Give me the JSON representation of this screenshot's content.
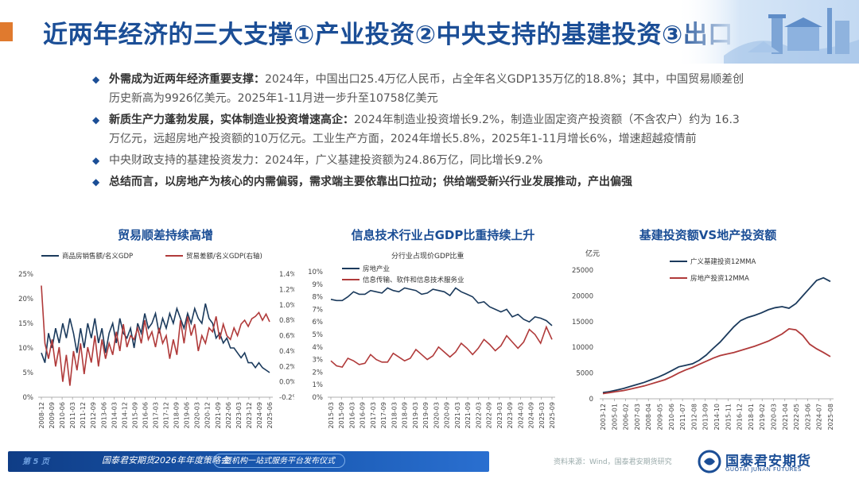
{
  "title": "近两年经济的三大支撑①产业投资②中央支持的基建投资③出口",
  "bullets": [
    {
      "mark": "◆",
      "bold": "外需成为近两年经济重要支撑：",
      "text": "2024年，中国出口25.4万亿人民币，占全年名义GDP135万亿的18.8%；其中，中国贸易顺差创历史新高为9926亿美元。2025年1-11月进一步升至10758亿美元"
    },
    {
      "mark": "◆",
      "bold": "新质生产力蓬勃发展，实体制造业投资增速高企：",
      "text": "2024年制造业投资增长9.2%，制造业固定资产投资额（不含农户）约为 16.3万亿元，远超房地产投资额的10万亿元。工业生产方面，2024年增长5.8%，2025年1-11月增长6%，增速超越疫情前"
    },
    {
      "mark": "◆",
      "bold": "",
      "text": "中央财政支持的基建投资发力：2024年，广义基建投资额为24.86万亿，同比增长9.2%"
    },
    {
      "mark": "◆",
      "bold": "总结而言，以房地产为核心的内需偏弱，需求端主要依靠出口拉动；供给端受新兴行业发展推动，产出偏强",
      "text": ""
    }
  ],
  "colors": {
    "navy": "#1b3a5c",
    "red": "#b03a3a",
    "brand": "#1b4e96",
    "accent": "#e07a2e"
  },
  "chart_data": [
    {
      "type": "line",
      "title": "贸易顺差持续高增",
      "legend": [
        "商品房销售额/名义GDP",
        "贸易差额/名义GDP(右轴)"
      ],
      "x_ticks": [
        "2008-12",
        "2009-09",
        "2010-06",
        "2011-03",
        "2011-12",
        "2012-09",
        "2013-06",
        "2014-03",
        "2014-12",
        "2015-09",
        "2016-06",
        "2017-03",
        "2017-12",
        "2018-09",
        "2019-06",
        "2020-03",
        "2020-12",
        "2021-09",
        "2022-06",
        "2023-03",
        "2023-12",
        "2024-09",
        "2025-06"
      ],
      "y_ticks_left": [
        "0%",
        "5%",
        "10%",
        "15%",
        "20%",
        "25%"
      ],
      "y_ticks_right": [
        "-0.2%",
        "0.0%",
        "0.2%",
        "0.4%",
        "0.6%",
        "0.8%",
        "1.0%",
        "1.2%",
        "1.4%"
      ],
      "ylim_left": [
        0,
        25
      ],
      "ylim_right": [
        -0.2,
        1.4
      ],
      "series": [
        {
          "name": "商品房销售额/名义GDP",
          "axis": "left",
          "values": [
            9,
            7,
            13,
            10,
            14,
            11,
            15,
            12,
            16,
            13,
            9,
            14,
            10,
            15,
            12,
            16,
            11,
            14,
            9,
            13,
            15,
            11,
            16,
            13,
            12,
            14,
            10,
            15,
            13,
            17,
            14,
            15,
            17,
            13,
            16,
            14,
            17,
            15,
            18,
            16,
            14,
            17,
            15,
            18,
            16,
            15,
            19,
            16,
            15,
            12,
            13,
            11,
            12,
            10,
            10,
            9,
            8,
            9,
            7,
            7,
            6,
            7,
            6,
            5.5,
            5
          ]
        },
        {
          "name": "贸易差额/名义GDP(右轴)",
          "axis": "right",
          "values": [
            1.25,
            0.5,
            0.3,
            0.55,
            0.2,
            0.45,
            0.0,
            0.35,
            -0.05,
            0.4,
            0.15,
            0.5,
            0.1,
            0.45,
            0.25,
            0.6,
            0.2,
            0.55,
            0.3,
            0.5,
            0.35,
            0.65,
            0.4,
            0.75,
            0.45,
            0.6,
            0.55,
            0.7,
            0.5,
            0.8,
            0.55,
            0.65,
            0.45,
            0.7,
            0.5,
            0.6,
            0.3,
            0.55,
            0.35,
            0.8,
            0.5,
            0.85,
            0.6,
            0.75,
            0.4,
            0.6,
            0.5,
            0.7,
            0.65,
            0.85,
            0.55,
            0.75,
            0.6,
            0.55,
            0.7,
            0.6,
            0.75,
            0.8,
            0.72,
            0.82,
            0.85,
            0.9,
            0.8,
            0.88,
            0.78
          ]
        }
      ]
    },
    {
      "type": "line",
      "title": "信息技术行业占GDP比重持续上升",
      "subtitle": "分行业占现价GDP比重",
      "legend": [
        "房地产业",
        "信息传输、软件和信息技术服务业"
      ],
      "x_ticks": [
        "2015-03",
        "2015-09",
        "2016-03",
        "2016-09",
        "2017-03",
        "2017-09",
        "2018-03",
        "2018-09",
        "2019-03",
        "2019-09",
        "2020-03",
        "2020-09",
        "2021-03",
        "2021-09",
        "2022-03",
        "2022-09",
        "2023-03",
        "2023-09",
        "2024-03",
        "2024-09",
        "2025-03",
        "2025-09"
      ],
      "y_ticks": [
        "0%",
        "1%",
        "2%",
        "3%",
        "4%",
        "5%",
        "6%",
        "7%",
        "8%",
        "9%",
        "10%"
      ],
      "ylim": [
        0,
        10
      ],
      "series": [
        {
          "name": "房地产业",
          "values": [
            7.8,
            7.7,
            7.7,
            8.0,
            8.4,
            8.2,
            8.2,
            8.5,
            8.4,
            8.3,
            8.7,
            8.5,
            8.4,
            8.7,
            8.6,
            8.5,
            8.2,
            8.3,
            8.6,
            8.5,
            8.4,
            8.1,
            8.7,
            8.4,
            8.2,
            8.0,
            7.5,
            7.6,
            7.2,
            7.0,
            6.8,
            7.0,
            6.4,
            6.6,
            6.2,
            6.0,
            6.4,
            6.3,
            6.1,
            5.7
          ]
        },
        {
          "name": "信息传输、软件和信息技术服务业",
          "values": [
            2.9,
            2.5,
            2.4,
            3.1,
            2.9,
            2.6,
            2.7,
            3.4,
            3.0,
            2.8,
            2.8,
            3.5,
            3.2,
            2.9,
            3.1,
            3.8,
            3.4,
            3.0,
            3.3,
            4.0,
            3.6,
            3.2,
            3.6,
            4.3,
            3.9,
            3.4,
            3.9,
            4.6,
            4.2,
            3.7,
            4.1,
            4.9,
            4.4,
            3.9,
            4.4,
            5.4,
            5.0,
            4.3,
            5.6,
            4.6
          ]
        }
      ]
    },
    {
      "type": "line",
      "title": "基建投资额VS地产投资额",
      "ylabel": "亿元",
      "legend": [
        "广义基建投资12MMA",
        "房地产投资12MMA"
      ],
      "x_ticks": [
        "2003-12",
        "2005-01",
        "2006-02",
        "2007-03",
        "2008-04",
        "2009-05",
        "2010-06",
        "2011-07",
        "2012-08",
        "2013-09",
        "2014-10",
        "2015-11",
        "2016-12",
        "2018-01",
        "2019-02",
        "2020-03",
        "2021-04",
        "2022-05",
        "2023-06",
        "2024-07",
        "2025-08"
      ],
      "y_ticks": [
        "0",
        "5000",
        "10000",
        "15000",
        "20000",
        "25000"
      ],
      "ylim": [
        0,
        25000
      ],
      "series": [
        {
          "name": "广义基建投资12MMA",
          "values": [
            1200,
            1400,
            1700,
            2000,
            2400,
            2800,
            3200,
            3700,
            4200,
            4800,
            5500,
            6200,
            6500,
            6800,
            7500,
            8500,
            9800,
            11000,
            12500,
            14000,
            15200,
            15800,
            16200,
            16700,
            17300,
            17700,
            17900,
            17600,
            18500,
            20000,
            21500,
            23000,
            23500,
            22800
          ]
        },
        {
          "name": "房地产投资12MMA",
          "values": [
            1000,
            1200,
            1400,
            1600,
            1900,
            2200,
            2500,
            2900,
            3300,
            3700,
            4300,
            5000,
            5600,
            6100,
            6700,
            7300,
            7900,
            8400,
            8700,
            9000,
            9400,
            9800,
            10200,
            10700,
            11200,
            11900,
            12600,
            13600,
            13400,
            12300,
            10600,
            9700,
            9000,
            8200
          ]
        }
      ]
    }
  ],
  "footer": {
    "page": "第 5 页",
    "event1": "国泰君安期货2026年年度策略会",
    "event2": "暨机构一站式服务平台发布仪式",
    "source": "资料来源：Wind，国泰君安期货研究",
    "logo_cn": "国泰君安期货",
    "logo_en": "GUOTAI JUNAN FUTURES"
  }
}
